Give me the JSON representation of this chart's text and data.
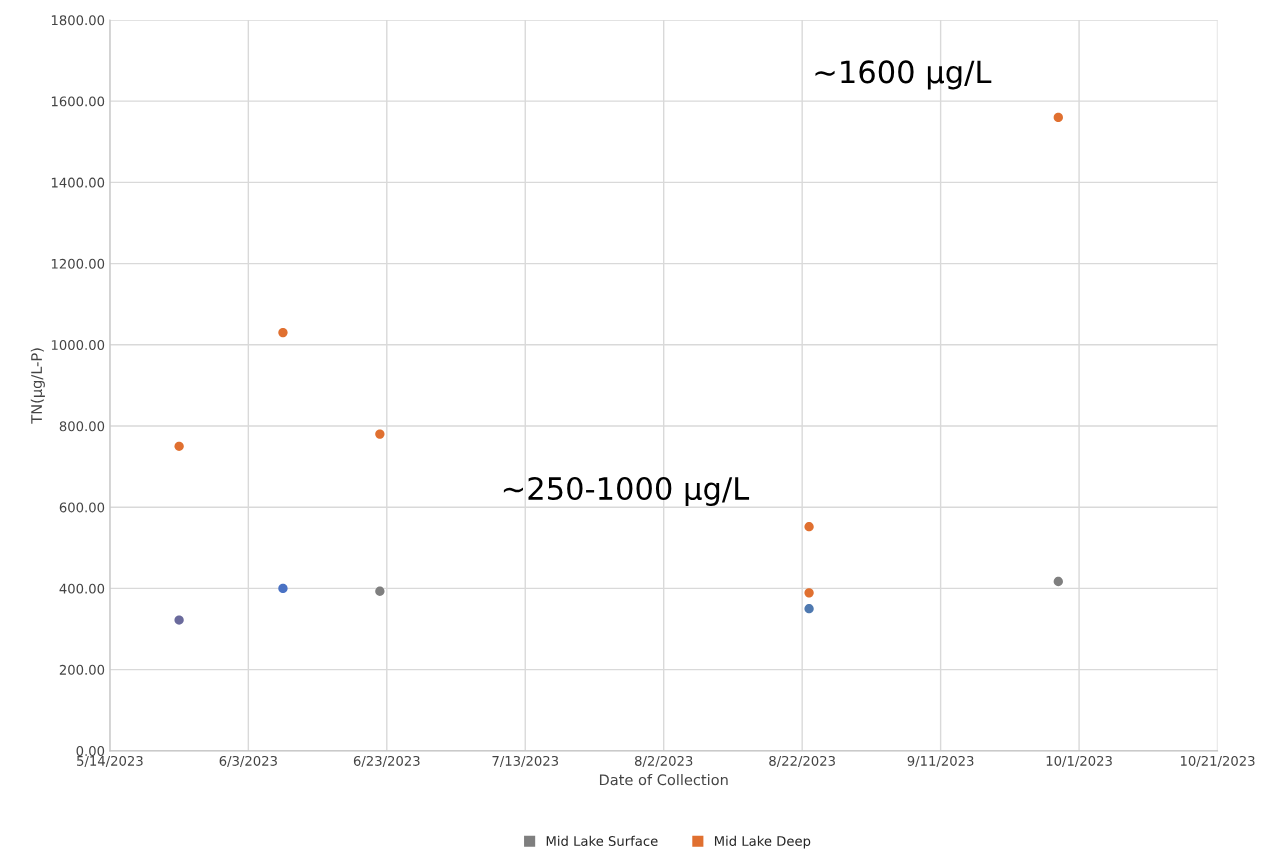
{
  "chart_data": {
    "type": "scatter",
    "xlabel": "Date of Collection",
    "ylabel": "TN(µg/L-P)",
    "series": [
      {
        "name": "Mid Lake Surface",
        "color": "#7f7f7f",
        "colors": [
          "#6a6a9c",
          "#4a72c4",
          "#7f7f7f",
          "#4f79b0",
          "#7f7f7f"
        ],
        "x": [
          "2023-05-24",
          "2023-06-08",
          "2023-06-22",
          "2023-08-23",
          "2023-09-28"
        ],
        "values": [
          322,
          400,
          393,
          350,
          417
        ]
      },
      {
        "name": "Mid Lake Deep",
        "color": "#e07030",
        "x": [
          "2023-05-24",
          "2023-06-08",
          "2023-06-22",
          "2023-08-23",
          "2023-08-23",
          "2023-09-28"
        ],
        "values": [
          750,
          1030,
          780,
          552,
          389,
          1560
        ]
      }
    ],
    "xlim": [
      "2023-05-14",
      "2023-10-21"
    ],
    "xticks": [
      {
        "value": "2023-05-14",
        "label": "5/14/2023"
      },
      {
        "value": "2023-06-03",
        "label": "6/3/2023"
      },
      {
        "value": "2023-06-23",
        "label": "6/23/2023"
      },
      {
        "value": "2023-07-13",
        "label": "7/13/2023"
      },
      {
        "value": "2023-08-02",
        "label": "8/2/2023"
      },
      {
        "value": "2023-08-22",
        "label": "8/22/2023"
      },
      {
        "value": "2023-09-11",
        "label": "9/11/2023"
      },
      {
        "value": "2023-10-01",
        "label": "10/1/2023"
      },
      {
        "value": "2023-10-21",
        "label": "10/21/2023"
      }
    ],
    "ylim": [
      0,
      1800
    ],
    "yticks": [
      {
        "value": 0,
        "label": "0.00"
      },
      {
        "value": 200,
        "label": "200.00"
      },
      {
        "value": 400,
        "label": "400.00"
      },
      {
        "value": 600,
        "label": "600.00"
      },
      {
        "value": 800,
        "label": "800.00"
      },
      {
        "value": 1000,
        "label": "1000.00"
      },
      {
        "value": 1200,
        "label": "1200.00"
      },
      {
        "value": 1400,
        "label": "1400.00"
      },
      {
        "value": 1600,
        "label": "1600.00"
      },
      {
        "value": 1800,
        "label": "1800.00"
      }
    ],
    "annotations": [
      "~1600 µg/L",
      "~250-1000 µg/L"
    ],
    "grid": true,
    "legend": "bottom",
    "marker": "circle"
  }
}
